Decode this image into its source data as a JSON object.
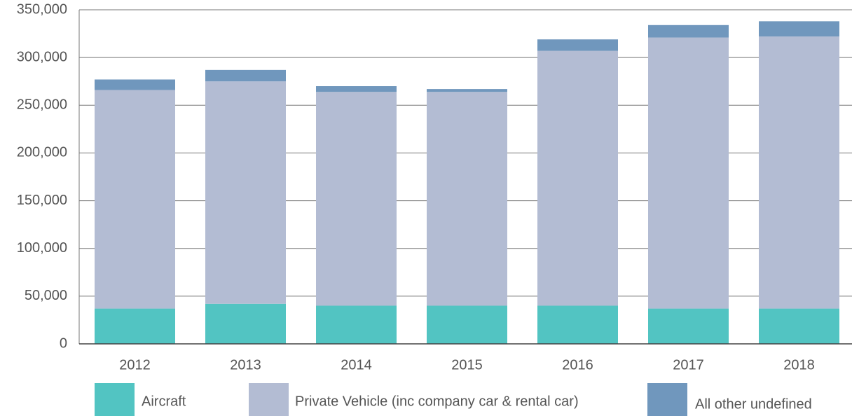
{
  "chart_data": {
    "type": "stacked_bar",
    "categories": [
      "2012",
      "2013",
      "2014",
      "2015",
      "2016",
      "2017",
      "2018"
    ],
    "series": [
      {
        "name": "Aircraft",
        "color": "#52c4c2",
        "values": [
          37000,
          42000,
          40000,
          40000,
          40000,
          37000,
          37000
        ]
      },
      {
        "name": "Private Vehicle (inc company car & rental car)",
        "color": "#b3bcd3",
        "values": [
          229000,
          233000,
          224000,
          224000,
          267000,
          284000,
          285000
        ]
      },
      {
        "name": "All other undefined",
        "color": "#7097bd",
        "values": [
          11000,
          12000,
          6000,
          3000,
          12000,
          13000,
          16000
        ]
      }
    ],
    "ylim": [
      0,
      350000
    ],
    "yticks": [
      0,
      {
        "value": 50000,
        "label": "50,000"
      },
      {
        "value": 100000,
        "label": "100,000"
      },
      {
        "value": 150000,
        "label": "150,000"
      },
      {
        "value": 200000,
        "label": "200,000"
      },
      {
        "value": 250000,
        "label": "250,000"
      },
      {
        "value": 300000,
        "label": "300,000"
      },
      {
        "value": 350000,
        "label": "350,000"
      }
    ],
    "grid": true
  }
}
